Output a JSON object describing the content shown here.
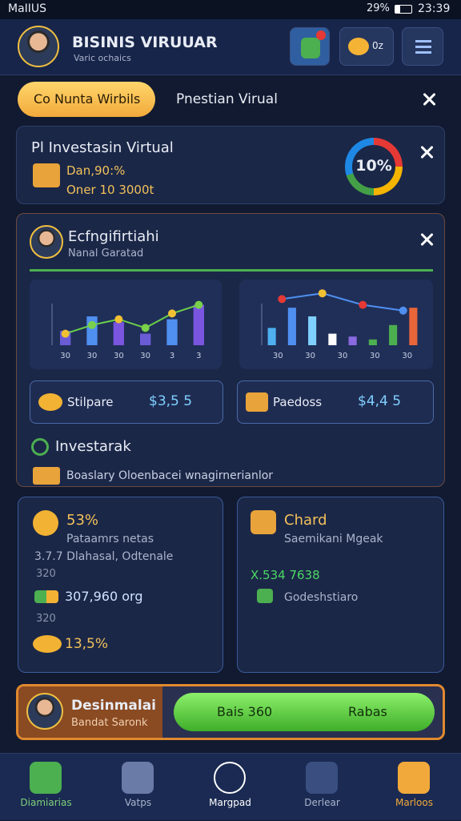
{
  "status_bar": {
    "carrier": "MaIIUS",
    "battery": "29%",
    "time": "23:39"
  },
  "header": {
    "title": "BISINIS VIRUUAR",
    "subtitle": "Varic ochaics",
    "chat_badge": "0z"
  },
  "tabs": {
    "active": "Co Nunta Wirbils",
    "inactive": "Pnestian Virual"
  },
  "investment_card": {
    "title": "Pl Investasin Virtual",
    "line1": "Dan,90:%",
    "line2": "Oner 10 3000t",
    "donut_label": "10%"
  },
  "analytics_card": {
    "title": "Ecfngifirtiahi",
    "subtitle": "Nanal Garatad",
    "left_chart": {
      "ylim": [
        0,
        100
      ],
      "bars": [
        25,
        50,
        40,
        20,
        45,
        70
      ],
      "line": [
        20,
        35,
        45,
        30,
        55,
        70
      ],
      "x_labels": [
        "30",
        "30",
        "30",
        "30",
        "3",
        "3"
      ]
    },
    "right_chart": {
      "ylim": [
        0,
        100
      ],
      "bars": [
        30,
        65,
        50,
        20,
        15,
        10,
        35,
        65
      ],
      "line": [
        80,
        90,
        70,
        60
      ],
      "x_labels": [
        "30",
        "30",
        "30",
        "30",
        "30"
      ]
    },
    "stat_left": {
      "label": "Stilpare",
      "value": "$3,5 5"
    },
    "stat_right": {
      "label": "Paedoss",
      "value": "$4,4 5"
    },
    "section_title": "Investarak",
    "section_text": "Boaslary Oloenbacei wnagirnerianlor"
  },
  "left_panel": {
    "percent": "53%",
    "subtitle": "Pataamrs netas",
    "line1": "3.7.7 Dlahasal, Odtenale",
    "line2": "320",
    "amount": "307,960 org",
    "line3": "320",
    "footer": "13,5%"
  },
  "right_panel": {
    "title": "Chard",
    "subtitle": "Saemikani Mgeak",
    "amount": "X.534 7638",
    "footer": "Godeshstiaro"
  },
  "promo": {
    "title": "Desinmalai",
    "subtitle": "Bandat Saronk",
    "button_left": "Bais 360",
    "button_right": "Rabas"
  },
  "nav": [
    "Diamiarias",
    "Vatps",
    "Margpad",
    "Derlear",
    "Marloos"
  ]
}
